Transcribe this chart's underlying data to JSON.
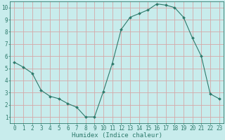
{
  "x": [
    0,
    1,
    2,
    3,
    4,
    5,
    6,
    7,
    8,
    9,
    10,
    11,
    12,
    13,
    14,
    15,
    16,
    17,
    18,
    19,
    20,
    21,
    22,
    23
  ],
  "y": [
    5.5,
    5.1,
    4.6,
    3.2,
    2.7,
    2.5,
    2.1,
    1.8,
    1.0,
    1.0,
    3.1,
    5.4,
    8.2,
    9.2,
    9.5,
    9.8,
    10.3,
    10.2,
    10.0,
    9.2,
    7.5,
    6.0,
    2.9,
    2.5
  ],
  "line_color": "#2d7a6b",
  "marker": "D",
  "marker_size": 2.0,
  "bg_color": "#c8ecec",
  "grid_color": "#d4a8a8",
  "xlabel": "Humidex (Indice chaleur)",
  "xlim": [
    -0.5,
    23.5
  ],
  "ylim": [
    0.5,
    10.5
  ],
  "yticks": [
    1,
    2,
    3,
    4,
    5,
    6,
    7,
    8,
    9,
    10
  ],
  "xticks": [
    0,
    1,
    2,
    3,
    4,
    5,
    6,
    7,
    8,
    9,
    10,
    11,
    12,
    13,
    14,
    15,
    16,
    17,
    18,
    19,
    20,
    21,
    22,
    23
  ],
  "tick_fontsize": 5.5,
  "xlabel_fontsize": 6.5
}
